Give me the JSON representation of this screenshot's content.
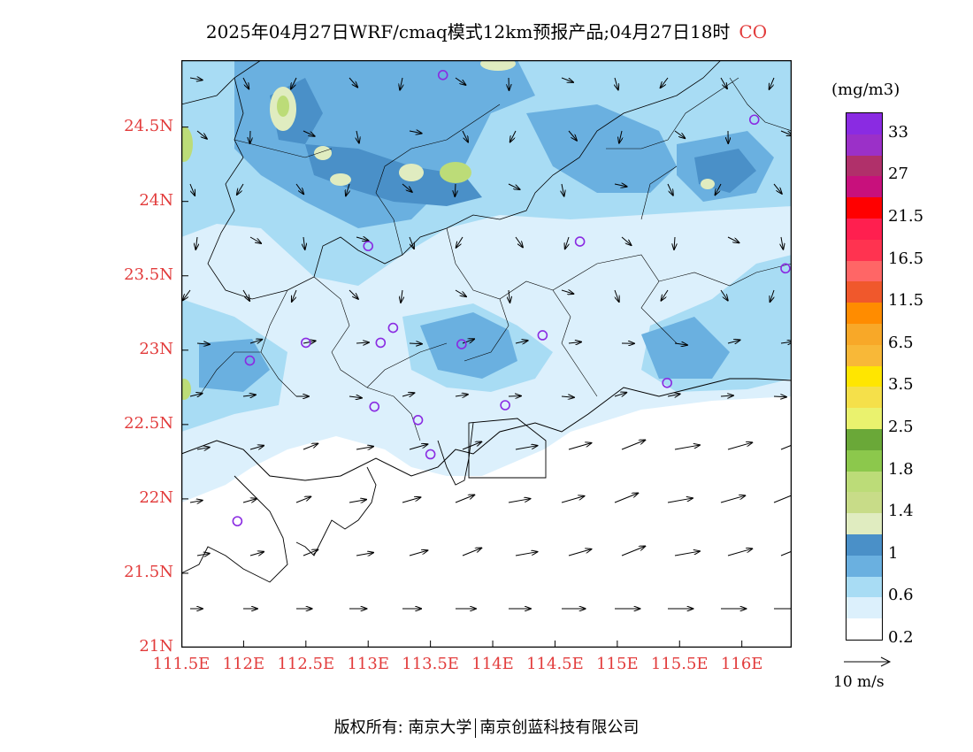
{
  "title": {
    "text": "2025年04月27日WRF/cmaq模式12km预报产品;04月27日18时",
    "species": "CO",
    "species_color": "#e23b3b"
  },
  "map": {
    "lon_range": [
      111.5,
      116.4
    ],
    "lat_range": [
      21.0,
      24.95
    ],
    "y_axis": {
      "ticks": [
        {
          "value": 24.5,
          "label": "24.5N"
        },
        {
          "value": 24.0,
          "label": "24N"
        },
        {
          "value": 23.5,
          "label": "23.5N"
        },
        {
          "value": 23.0,
          "label": "23N"
        },
        {
          "value": 22.5,
          "label": "22.5N"
        },
        {
          "value": 22.0,
          "label": "22N"
        },
        {
          "value": 21.5,
          "label": "21.5N"
        },
        {
          "value": 21.0,
          "label": "21N"
        }
      ]
    },
    "x_axis": {
      "ticks": [
        {
          "value": 111.5,
          "label": "111.5E"
        },
        {
          "value": 112.0,
          "label": "112E"
        },
        {
          "value": 112.5,
          "label": "112.5E"
        },
        {
          "value": 113.0,
          "label": "113E"
        },
        {
          "value": 113.5,
          "label": "113.5E"
        },
        {
          "value": 114.0,
          "label": "114E"
        },
        {
          "value": 114.5,
          "label": "114.5E"
        },
        {
          "value": 115.0,
          "label": "115E"
        },
        {
          "value": 115.5,
          "label": "115.5E"
        },
        {
          "value": 116.0,
          "label": "116E"
        }
      ]
    },
    "stations": [
      {
        "lon": 113.6,
        "lat": 24.85
      },
      {
        "lon": 116.1,
        "lat": 24.55
      },
      {
        "lon": 113.0,
        "lat": 23.7
      },
      {
        "lon": 114.7,
        "lat": 23.73
      },
      {
        "lon": 116.35,
        "lat": 23.55
      },
      {
        "lon": 113.2,
        "lat": 23.15
      },
      {
        "lon": 112.5,
        "lat": 23.05
      },
      {
        "lon": 113.1,
        "lat": 23.05
      },
      {
        "lon": 113.75,
        "lat": 23.04
      },
      {
        "lon": 114.4,
        "lat": 23.1
      },
      {
        "lon": 112.05,
        "lat": 22.93
      },
      {
        "lon": 115.4,
        "lat": 22.78
      },
      {
        "lon": 113.05,
        "lat": 22.62
      },
      {
        "lon": 113.4,
        "lat": 22.53
      },
      {
        "lon": 114.1,
        "lat": 22.63
      },
      {
        "lon": 113.5,
        "lat": 22.3
      },
      {
        "lon": 111.95,
        "lat": 21.85
      }
    ],
    "station_color": "#8a2be2",
    "land_color": "#f4f4f4"
  },
  "colorbar": {
    "units": "(mg/m3)",
    "colors_top_to_bottom": [
      "#8a2be2",
      "#9b30c8",
      "#b0306a",
      "#c8107c",
      "#ff0000",
      "#ff1f4f",
      "#ff3350",
      "#ff6666",
      "#f0582c",
      "#ff8c00",
      "#f8a828",
      "#f8b838",
      "#ffe600",
      "#f5e04a",
      "#eaf26e",
      "#6aa838",
      "#8cc84c",
      "#bcdc78",
      "#c8dc88",
      "#e0ecc0",
      "#4a90c8",
      "#6ab0e0",
      "#a8dcf4",
      "#dcf0fc",
      "#ffffff"
    ],
    "labels": [
      {
        "text": "33",
        "index": 1
      },
      {
        "text": "27",
        "index": 3
      },
      {
        "text": "21.5",
        "index": 5
      },
      {
        "text": "16.5",
        "index": 7
      },
      {
        "text": "11.5",
        "index": 9
      },
      {
        "text": "6.5",
        "index": 11
      },
      {
        "text": "3.5",
        "index": 13
      },
      {
        "text": "2.5",
        "index": 15
      },
      {
        "text": "1.8",
        "index": 17
      },
      {
        "text": "1.4",
        "index": 19
      },
      {
        "text": "1",
        "index": 21
      },
      {
        "text": "0.6",
        "index": 23
      },
      {
        "text": "0.2",
        "index": 25
      }
    ]
  },
  "wind_scale": {
    "label": "10 m/s"
  },
  "footer": {
    "left": "版权所有: 南京大学",
    "right": "南京创蓝科技有限公司"
  }
}
